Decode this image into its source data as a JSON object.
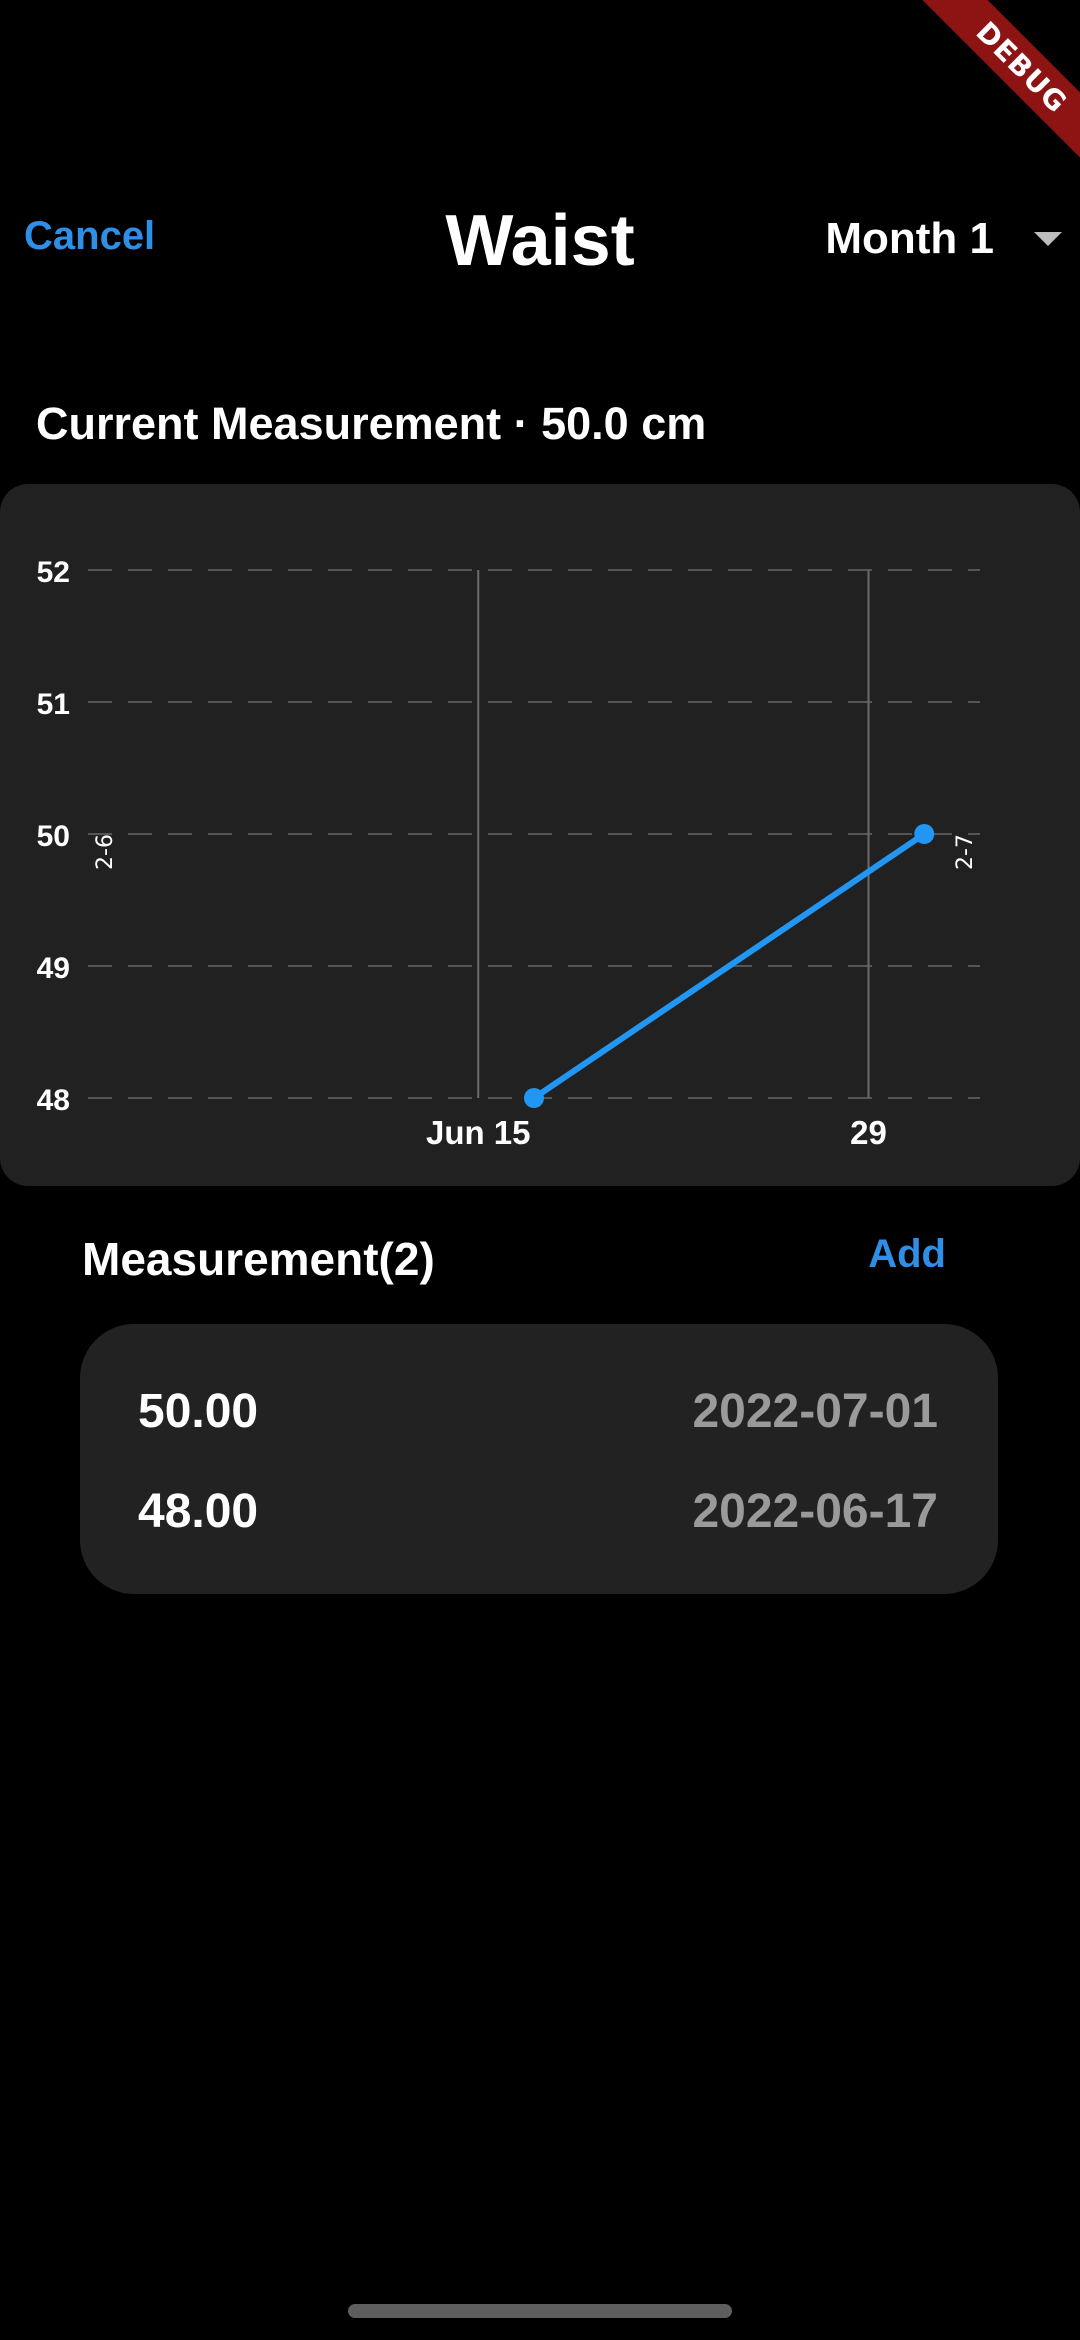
{
  "debug": "DEBUG",
  "header": {
    "cancel_label": "Cancel",
    "title": "Waist",
    "period": "Month 1"
  },
  "current_measurement": "Current Measurement · 50.0 cm",
  "chart_data": {
    "type": "line",
    "x": [
      "2022-06-17",
      "2022-07-01"
    ],
    "y": [
      48.0,
      50.0
    ],
    "ylim": [
      48,
      52
    ],
    "yticks": [
      52,
      51,
      50,
      49,
      48
    ],
    "xticks": [
      {
        "date": "2022-06-15",
        "label": "Jun 15"
      },
      {
        "date": "2022-06-29",
        "label": "29"
      }
    ],
    "side_labels": [
      "2-6",
      "2-7"
    ],
    "grid": "horizontal dashed",
    "color": "#2196f3"
  },
  "section": {
    "title": "Measurement(2)",
    "add_label": "Add"
  },
  "measurements": [
    {
      "value": "50.00",
      "date": "2022-07-01"
    },
    {
      "value": "48.00",
      "date": "2022-06-17"
    }
  ],
  "colors": {
    "accent": "#2f8fe6",
    "card": "#212121",
    "debug_banner": "#8e1414"
  }
}
